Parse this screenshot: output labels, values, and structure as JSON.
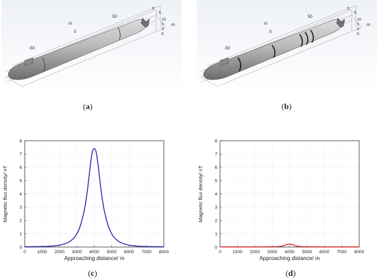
{
  "figures": {
    "a": {
      "caption_open": "(",
      "caption_letter": "a",
      "caption_close": ")",
      "axis_unit": "m",
      "axis_ticks_long": [
        "-50",
        "0",
        "50"
      ],
      "axis_ticks_right_top": [
        "5",
        "-5"
      ],
      "axis_ticks_right_mid": [
        "10",
        "5",
        "0",
        "-5"
      ]
    },
    "b": {
      "caption_open": "(",
      "caption_letter": "b",
      "caption_close": ")",
      "axis_unit": "m",
      "axis_ticks_long": [
        "-50",
        "0",
        "50"
      ],
      "axis_ticks_right_top": [
        "5",
        "-5"
      ],
      "axis_ticks_right_mid": [
        "10",
        "5",
        "0",
        "-5"
      ]
    },
    "c": {
      "caption_open": "(",
      "caption_letter": "c",
      "caption_close": ")"
    },
    "d": {
      "caption_open": "(",
      "caption_letter": "d",
      "caption_close": ")"
    }
  },
  "colors": {
    "series_c": "#1f1fa8",
    "series_d": "#d11e1e",
    "grid": "#d9d9d9"
  },
  "chart_data": [
    {
      "id": "c",
      "type": "line",
      "xlabel": "Approaching distance/ m",
      "ylabel": "Magnetic flux density/ nT",
      "xlim": [
        0,
        8000
      ],
      "ylim": [
        0,
        8
      ],
      "xticks": [
        0,
        1000,
        2000,
        3000,
        4000,
        5000,
        6000,
        7000,
        8000
      ],
      "yticks": [
        0,
        1,
        2,
        3,
        4,
        5,
        6,
        7,
        8
      ],
      "grid": true,
      "series": [
        {
          "x": [
            0,
            1000,
            1500,
            2000,
            2500,
            2800,
            3000,
            3200,
            3400,
            3500,
            3600,
            3700,
            3800,
            3900,
            4000,
            4100,
            4200,
            4300,
            4400,
            4500,
            4600,
            4800,
            5000,
            5200,
            5500,
            6000,
            6500,
            7000,
            8000
          ],
          "y": [
            0.02,
            0.04,
            0.07,
            0.14,
            0.35,
            0.65,
            1.0,
            1.6,
            2.6,
            3.3,
            4.2,
            5.3,
            6.4,
            7.2,
            7.4,
            7.2,
            6.4,
            5.3,
            4.2,
            3.3,
            2.6,
            1.6,
            1.0,
            0.65,
            0.35,
            0.14,
            0.07,
            0.04,
            0.02
          ]
        }
      ]
    },
    {
      "id": "d",
      "type": "line",
      "xlabel": "Approaching distance/ m",
      "ylabel": "Magnetic flux density/ nT",
      "xlim": [
        0,
        8000
      ],
      "ylim": [
        0,
        8
      ],
      "xticks": [
        0,
        1000,
        2000,
        3000,
        4000,
        5000,
        6000,
        7000,
        8000
      ],
      "yticks": [
        0,
        1,
        2,
        3,
        4,
        5,
        6,
        7,
        8
      ],
      "grid": true,
      "series": [
        {
          "x": [
            0,
            2000,
            3000,
            3400,
            3600,
            3700,
            3800,
            3900,
            4000,
            4100,
            4200,
            4300,
            4400,
            4600,
            5000,
            6000,
            8000
          ],
          "y": [
            0.01,
            0.01,
            0.02,
            0.04,
            0.08,
            0.12,
            0.17,
            0.21,
            0.22,
            0.21,
            0.17,
            0.12,
            0.08,
            0.04,
            0.02,
            0.01,
            0.01
          ]
        }
      ]
    }
  ]
}
